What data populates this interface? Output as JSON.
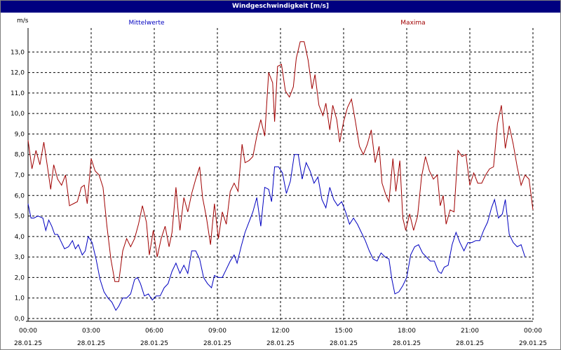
{
  "window": {
    "title": "Windgeschwindigkeit [m/s]"
  },
  "chart_data": {
    "type": "line",
    "title": "Windgeschwindigkeit [m/s]",
    "ylabel": "m/s",
    "ylim": [
      0,
      14
    ],
    "yticks": [
      "0,0",
      "1,0",
      "2,0",
      "3,0",
      "4,0",
      "5,0",
      "6,0",
      "7,0",
      "8,0",
      "9,0",
      "10,0",
      "11,0",
      "12,0",
      "13,0"
    ],
    "xticks": [
      {
        "time": "00:00",
        "date": "28.01.25"
      },
      {
        "time": "03:00",
        "date": "28.01.25"
      },
      {
        "time": "06:00",
        "date": "28.01.25"
      },
      {
        "time": "09:00",
        "date": "28.01.25"
      },
      {
        "time": "12:00",
        "date": "28.01.25"
      },
      {
        "time": "15:00",
        "date": "28.01.25"
      },
      {
        "time": "18:00",
        "date": "28.01.25"
      },
      {
        "time": "21:00",
        "date": "28.01.25"
      },
      {
        "time": "00:00",
        "date": "29.01.25"
      }
    ],
    "grid": true,
    "series": [
      {
        "name": "Mittelwerte",
        "color": "#0000c0",
        "points": [
          [
            0.0,
            5.6
          ],
          [
            0.15,
            4.9
          ],
          [
            0.3,
            4.9
          ],
          [
            0.5,
            5.0
          ],
          [
            0.75,
            4.9
          ],
          [
            0.9,
            4.3
          ],
          [
            1.05,
            4.8
          ],
          [
            1.2,
            4.5
          ],
          [
            1.35,
            4.1
          ],
          [
            1.5,
            4.1
          ],
          [
            1.65,
            3.8
          ],
          [
            1.85,
            3.4
          ],
          [
            2.05,
            3.5
          ],
          [
            2.25,
            3.8
          ],
          [
            2.4,
            3.4
          ],
          [
            2.55,
            3.6
          ],
          [
            2.75,
            3.1
          ],
          [
            2.9,
            3.3
          ],
          [
            3.05,
            4.0
          ],
          [
            3.25,
            3.7
          ],
          [
            3.45,
            2.9
          ],
          [
            3.65,
            1.9
          ],
          [
            3.85,
            1.3
          ],
          [
            4.05,
            1.0
          ],
          [
            4.25,
            0.8
          ],
          [
            4.45,
            0.4
          ],
          [
            4.6,
            0.6
          ],
          [
            4.8,
            1.0
          ],
          [
            5.0,
            1.0
          ],
          [
            5.2,
            1.2
          ],
          [
            5.4,
            1.9
          ],
          [
            5.55,
            2.0
          ],
          [
            5.7,
            1.7
          ],
          [
            5.9,
            1.1
          ],
          [
            6.1,
            1.2
          ],
          [
            6.3,
            0.9
          ],
          [
            6.5,
            1.1
          ],
          [
            6.7,
            1.1
          ],
          [
            6.9,
            1.5
          ],
          [
            7.1,
            1.7
          ],
          [
            7.3,
            2.3
          ],
          [
            7.5,
            2.7
          ],
          [
            7.7,
            2.2
          ],
          [
            7.9,
            2.6
          ],
          [
            8.1,
            2.2
          ],
          [
            8.3,
            3.3
          ],
          [
            8.5,
            3.3
          ],
          [
            8.7,
            2.9
          ],
          [
            8.9,
            2.0
          ],
          [
            9.1,
            1.7
          ],
          [
            9.3,
            1.5
          ],
          [
            9.45,
            2.1
          ],
          [
            9.65,
            2.0
          ],
          [
            9.85,
            2.0
          ],
          [
            10.05,
            2.4
          ],
          [
            10.25,
            2.8
          ],
          [
            10.45,
            3.1
          ],
          [
            10.6,
            2.7
          ],
          [
            10.8,
            3.5
          ],
          [
            11.0,
            4.2
          ],
          [
            11.2,
            4.7
          ],
          [
            11.4,
            5.2
          ],
          [
            11.6,
            5.9
          ],
          [
            11.8,
            4.5
          ],
          [
            12.0,
            6.4
          ],
          [
            12.2,
            6.3
          ],
          [
            12.35,
            5.7
          ],
          [
            12.5,
            7.4
          ],
          [
            12.7,
            7.4
          ],
          [
            12.9,
            7.1
          ],
          [
            13.1,
            6.1
          ],
          [
            13.3,
            6.7
          ],
          [
            13.5,
            8.0
          ],
          [
            13.7,
            8.0
          ],
          [
            13.9,
            6.8
          ],
          [
            14.1,
            7.6
          ],
          [
            14.3,
            7.2
          ],
          [
            14.5,
            6.6
          ],
          [
            14.7,
            6.9
          ],
          [
            14.9,
            5.8
          ],
          [
            15.1,
            5.4
          ],
          [
            15.3,
            6.4
          ],
          [
            15.5,
            5.8
          ],
          [
            15.7,
            5.5
          ],
          [
            15.9,
            5.7
          ],
          [
            16.1,
            5.2
          ],
          [
            16.3,
            4.6
          ],
          [
            16.5,
            4.9
          ],
          [
            16.7,
            4.6
          ],
          [
            16.9,
            4.2
          ],
          [
            17.1,
            3.8
          ],
          [
            17.3,
            3.3
          ],
          [
            17.5,
            2.9
          ],
          [
            17.7,
            2.8
          ],
          [
            17.9,
            3.2
          ],
          [
            18.1,
            3.0
          ],
          [
            18.3,
            2.9
          ],
          [
            18.45,
            1.9
          ],
          [
            18.6,
            1.2
          ],
          [
            18.8,
            1.3
          ],
          [
            19.0,
            1.6
          ],
          [
            19.2,
            2.0
          ],
          [
            19.4,
            3.1
          ],
          [
            19.6,
            3.5
          ],
          [
            19.8,
            3.6
          ],
          [
            20.0,
            3.2
          ],
          [
            20.2,
            3.0
          ],
          [
            20.4,
            2.8
          ],
          [
            20.6,
            2.8
          ],
          [
            20.8,
            2.3
          ],
          [
            20.95,
            2.2
          ],
          [
            21.1,
            2.5
          ],
          [
            21.3,
            2.6
          ],
          [
            21.5,
            3.6
          ],
          [
            21.7,
            4.2
          ],
          [
            21.9,
            3.7
          ],
          [
            22.1,
            3.3
          ],
          [
            22.3,
            3.7
          ],
          [
            22.5,
            3.7
          ],
          [
            22.7,
            3.8
          ],
          [
            22.9,
            3.8
          ],
          [
            23.1,
            4.3
          ],
          [
            23.3,
            4.7
          ],
          [
            23.5,
            5.4
          ],
          [
            23.65,
            5.8
          ],
          [
            23.85,
            4.9
          ],
          [
            24.05,
            5.1
          ],
          [
            24.2,
            5.8
          ],
          [
            24.4,
            4.1
          ],
          [
            24.6,
            3.7
          ],
          [
            24.8,
            3.5
          ],
          [
            25.0,
            3.6
          ],
          [
            25.2,
            3.0
          ]
        ]
      },
      {
        "name": "Maxima",
        "color": "#a00000",
        "points": [
          [
            0.0,
            8.7
          ],
          [
            0.2,
            7.3
          ],
          [
            0.4,
            8.2
          ],
          [
            0.6,
            7.5
          ],
          [
            0.8,
            8.6
          ],
          [
            1.0,
            7.3
          ],
          [
            1.15,
            6.3
          ],
          [
            1.3,
            7.5
          ],
          [
            1.5,
            6.8
          ],
          [
            1.7,
            6.5
          ],
          [
            1.9,
            7.0
          ],
          [
            2.1,
            5.5
          ],
          [
            2.3,
            5.6
          ],
          [
            2.5,
            5.7
          ],
          [
            2.7,
            6.4
          ],
          [
            2.85,
            6.5
          ],
          [
            3.0,
            5.6
          ],
          [
            3.2,
            7.8
          ],
          [
            3.4,
            7.2
          ],
          [
            3.6,
            7.0
          ],
          [
            3.8,
            6.4
          ],
          [
            4.0,
            4.5
          ],
          [
            4.2,
            2.9
          ],
          [
            4.4,
            1.8
          ],
          [
            4.6,
            1.8
          ],
          [
            4.8,
            3.3
          ],
          [
            5.0,
            3.9
          ],
          [
            5.2,
            3.5
          ],
          [
            5.4,
            3.9
          ],
          [
            5.6,
            4.6
          ],
          [
            5.8,
            5.5
          ],
          [
            6.0,
            4.7
          ],
          [
            6.15,
            3.1
          ],
          [
            6.35,
            4.3
          ],
          [
            6.55,
            3.0
          ],
          [
            6.75,
            3.9
          ],
          [
            6.95,
            4.5
          ],
          [
            7.15,
            3.5
          ],
          [
            7.3,
            4.2
          ],
          [
            7.5,
            6.4
          ],
          [
            7.7,
            4.3
          ],
          [
            7.9,
            5.9
          ],
          [
            8.1,
            5.2
          ],
          [
            8.3,
            6.1
          ],
          [
            8.5,
            6.8
          ],
          [
            8.7,
            7.4
          ],
          [
            8.85,
            5.9
          ],
          [
            9.05,
            4.9
          ],
          [
            9.25,
            3.6
          ],
          [
            9.45,
            5.6
          ],
          [
            9.65,
            3.9
          ],
          [
            9.85,
            5.2
          ],
          [
            10.05,
            4.6
          ],
          [
            10.25,
            6.2
          ],
          [
            10.45,
            6.6
          ],
          [
            10.65,
            6.2
          ],
          [
            10.85,
            8.5
          ],
          [
            11.0,
            7.6
          ],
          [
            11.2,
            7.7
          ],
          [
            11.4,
            7.9
          ],
          [
            11.6,
            8.9
          ],
          [
            11.8,
            9.7
          ],
          [
            12.0,
            8.9
          ],
          [
            12.2,
            12.0
          ],
          [
            12.4,
            11.5
          ],
          [
            12.5,
            9.6
          ],
          [
            12.65,
            12.3
          ],
          [
            12.85,
            12.4
          ],
          [
            13.05,
            11.1
          ],
          [
            13.25,
            10.8
          ],
          [
            13.45,
            11.3
          ],
          [
            13.6,
            12.7
          ],
          [
            13.8,
            13.5
          ],
          [
            14.0,
            13.5
          ],
          [
            14.2,
            12.6
          ],
          [
            14.4,
            11.2
          ],
          [
            14.55,
            11.9
          ],
          [
            14.75,
            10.4
          ],
          [
            14.95,
            9.9
          ],
          [
            15.1,
            10.5
          ],
          [
            15.3,
            9.2
          ],
          [
            15.45,
            10.4
          ],
          [
            15.65,
            9.7
          ],
          [
            15.8,
            8.6
          ],
          [
            16.0,
            9.6
          ],
          [
            16.2,
            10.3
          ],
          [
            16.4,
            10.7
          ],
          [
            16.6,
            9.6
          ],
          [
            16.8,
            8.4
          ],
          [
            17.0,
            8.0
          ],
          [
            17.2,
            8.5
          ],
          [
            17.4,
            9.2
          ],
          [
            17.6,
            7.6
          ],
          [
            17.8,
            8.4
          ],
          [
            17.95,
            6.6
          ],
          [
            18.15,
            6.0
          ],
          [
            18.3,
            5.7
          ],
          [
            18.5,
            7.8
          ],
          [
            18.65,
            6.2
          ],
          [
            18.85,
            7.7
          ],
          [
            19.0,
            4.9
          ],
          [
            19.15,
            4.3
          ],
          [
            19.35,
            5.1
          ],
          [
            19.55,
            4.3
          ],
          [
            19.75,
            5.0
          ],
          [
            19.95,
            6.9
          ],
          [
            20.15,
            7.9
          ],
          [
            20.35,
            7.2
          ],
          [
            20.55,
            6.8
          ],
          [
            20.75,
            7.0
          ],
          [
            20.9,
            5.5
          ],
          [
            21.05,
            6.0
          ],
          [
            21.2,
            4.6
          ],
          [
            21.4,
            5.3
          ],
          [
            21.6,
            5.2
          ],
          [
            21.8,
            8.2
          ],
          [
            22.0,
            7.9
          ],
          [
            22.2,
            8.0
          ],
          [
            22.4,
            6.5
          ],
          [
            22.6,
            7.1
          ],
          [
            22.8,
            6.6
          ],
          [
            23.0,
            6.6
          ],
          [
            23.2,
            7.0
          ],
          [
            23.4,
            7.3
          ],
          [
            23.6,
            7.4
          ],
          [
            23.8,
            9.5
          ],
          [
            24.0,
            10.4
          ],
          [
            24.2,
            8.3
          ],
          [
            24.4,
            9.4
          ],
          [
            24.6,
            8.5
          ],
          [
            24.8,
            7.4
          ],
          [
            25.0,
            6.5
          ],
          [
            25.2,
            7.0
          ],
          [
            25.4,
            6.8
          ],
          [
            25.6,
            5.3
          ]
        ]
      }
    ]
  }
}
